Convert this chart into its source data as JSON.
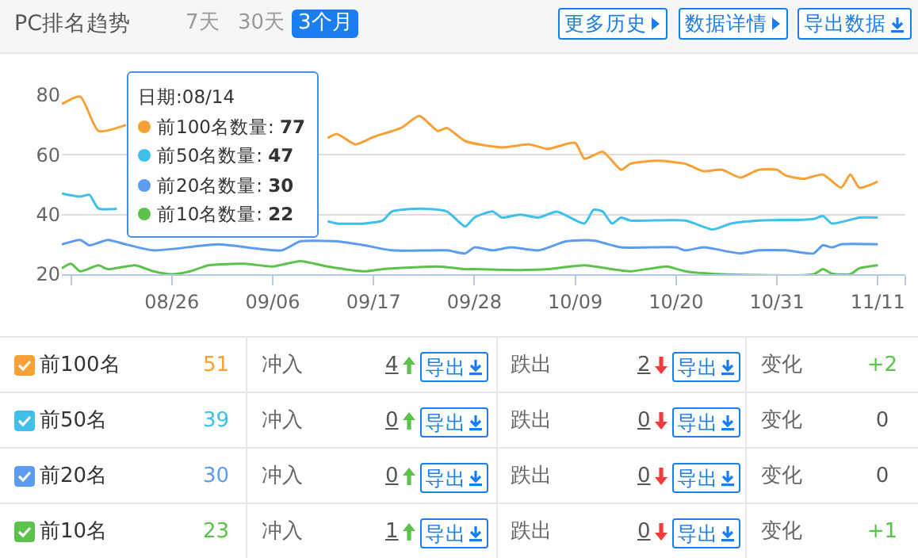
{
  "chart_data": [
    {
      "type": "line",
      "title": "PC排名趋势",
      "annotations": [
        "7天",
        "30天",
        "3个月",
        "更多历史",
        "数据详情",
        "导出数据",
        "日期:08/14",
        "前100名数量: 77",
        "前50名数量: 47",
        "前20名数量: 30",
        "前10名数量: 22"
      ],
      "x": [
        "--08-14",
        "--08-16",
        "--08-18",
        "--08-21",
        "--08-22",
        "--09-12",
        "--09-13",
        "--09-15",
        "--09-17",
        "--09-20",
        "--09-22",
        "--09-24",
        "--09-25",
        "--09-27",
        "--10-01",
        "--10-04",
        "--10-06",
        "--10-09",
        "--10-10",
        "--10-12",
        "--10-14",
        "--10-15",
        "--10-18",
        "--10-21",
        "--10-23",
        "--10-25",
        "--10-27",
        "--10-29",
        "--10-31",
        "--11-01",
        "--11-03",
        "--11-05",
        "--11-07",
        "--11-08",
        "--11-09",
        "--11-11"
      ],
      "series": [
        {
          "color": "#f7a035",
          "values": [
            77,
            79.5,
            68,
            70,
            null,
            65.6,
            67,
            63.5,
            66,
            69,
            73,
            68,
            69,
            64.6,
            62.5,
            63.5,
            62,
            64,
            58.7,
            61,
            55,
            57,
            58,
            57,
            54.5,
            55,
            52.4,
            55,
            55,
            53,
            52,
            53.4,
            49,
            53.4,
            49,
            51
          ]
        },
        {
          "color": "#3ec0ea",
          "x": [
            "--08-14",
            "--08-16",
            "--08-17",
            "--08-18",
            "--08-20",
            "--08-21",
            "--09-12",
            "--09-13",
            "--09-16",
            "--09-18",
            "--09-19",
            "--09-22",
            "--09-25",
            "--09-27",
            "--09-28",
            "--09-30",
            "--10-01",
            "--10-03",
            "--10-05",
            "--10-07",
            "--10-10",
            "--10-11",
            "--10-12",
            "--10-13",
            "--10-14",
            "--10-15",
            "--10-21",
            "--10-24",
            "--10-26",
            "--10-29",
            "--11-04",
            "--11-05",
            "--11-06",
            "--11-09",
            "--11-11"
          ],
          "values": [
            47,
            46,
            46.6,
            42,
            42,
            null,
            37.7,
            37,
            37,
            38,
            41,
            42,
            41,
            36,
            39,
            41,
            39,
            40,
            39,
            41,
            37,
            41.6,
            41,
            37,
            39,
            38,
            38,
            35,
            37,
            38,
            38.5,
            39.5,
            37,
            39,
            39
          ]
        },
        {
          "color": "#5b9bf0",
          "x": [
            "--08-14",
            "--08-16",
            "--08-17",
            "--08-19",
            "--08-21",
            "--08-24",
            "--08-31",
            "--09-07",
            "--09-09",
            "--09-13",
            "--09-16",
            "--09-19",
            "--09-25",
            "--09-27",
            "--09-28",
            "--09-30",
            "--10-02",
            "--10-05",
            "--10-08",
            "--10-11",
            "--10-14",
            "--10-20",
            "--10-21",
            "--10-23",
            "--10-27",
            "--10-29",
            "--11-01",
            "--11-04",
            "--11-05",
            "--11-06",
            "--11-07",
            "--11-11"
          ],
          "values": [
            30,
            31.5,
            29.7,
            31.5,
            30,
            28,
            30,
            28,
            31,
            31,
            29.7,
            28,
            28,
            27,
            29,
            28,
            29,
            28,
            31,
            31.3,
            29,
            29,
            28,
            29,
            27,
            28,
            28,
            27,
            29.7,
            29,
            30,
            30
          ]
        },
        {
          "color": "#5cc24b",
          "x": [
            "--08-14",
            "--08-15",
            "--08-16",
            "--08-18",
            "--08-19",
            "--08-22",
            "--08-24",
            "--08-26",
            "--08-28",
            "--08-30",
            "--09-03",
            "--09-06",
            "--09-09",
            "--09-12",
            "--09-16",
            "--09-18",
            "--09-24",
            "--09-27",
            "--09-28",
            "--10-03",
            "--10-06",
            "--10-10",
            "--10-15",
            "--10-19",
            "--10-21",
            "--10-25",
            "--11-04",
            "--11-05",
            "--11-06",
            "--11-08",
            "--11-09",
            "--11-11"
          ],
          "values": [
            22,
            23.5,
            21,
            23,
            21.7,
            23,
            21,
            20,
            21,
            23,
            23.5,
            22.6,
            24.4,
            22.6,
            21,
            21.7,
            22.6,
            21.7,
            21.7,
            21.4,
            21.7,
            23,
            21,
            22.6,
            21,
            20,
            20,
            21.7,
            20.2,
            20,
            22,
            23
          ]
        }
      ],
      "xlim": [
        "--08-14",
        "--11-14"
      ],
      "xticks": [
        {
          "value": "--08-15",
          "label": null
        },
        {
          "value": "--08-26",
          "label": "08/26"
        },
        {
          "value": "--09-06",
          "label": "09/06"
        },
        {
          "value": "--09-17",
          "label": "09/17"
        },
        {
          "value": "--09-28",
          "label": "09/28"
        },
        {
          "value": "--10-09",
          "label": "10/09"
        },
        {
          "value": "--10-20",
          "label": "10/20"
        },
        {
          "value": "--10-31",
          "label": "10/31"
        },
        {
          "value": "--11-11",
          "label": "11/11"
        },
        {
          "value": "--11-14",
          "label": null
        }
      ],
      "ylim": [
        20,
        80
      ],
      "yticks": [
        20,
        40,
        60,
        80
      ],
      "grid": "y",
      "legend": false,
      "marker": "none",
      "line_style": "solid"
    },
    {
      "type": "other",
      "colors": [
        "#f7a035",
        "#3ec0ea",
        "#5b9bf0",
        "#5cc24b"
      ],
      "annotations": [
        "前100名",
        "51",
        "冲入",
        "4",
        "导出",
        "跌出",
        "2",
        "导出",
        "变化",
        "+2",
        "前50名",
        "39",
        "冲入",
        "0",
        "导出",
        "跌出",
        "0",
        "导出",
        "变化",
        "0",
        "前20名",
        "30",
        "冲入",
        "0",
        "导出",
        "跌出",
        "0",
        "导出",
        "变化",
        "0",
        "前10名",
        "23",
        "冲入",
        "1",
        "导出",
        "跌出",
        "0",
        "导出",
        "变化",
        "+1"
      ]
    }
  ]
}
